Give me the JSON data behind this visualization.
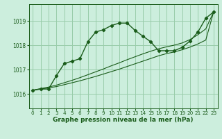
{
  "title": "Graphe pression niveau de la mer (hPa)",
  "bg_color": "#cceedd",
  "grid_color": "#99ccaa",
  "line_color": "#1a5c1a",
  "xlim": [
    -0.5,
    23.5
  ],
  "ylim": [
    1015.4,
    1019.7
  ],
  "yticks": [
    1016,
    1017,
    1018,
    1019
  ],
  "xticks": [
    0,
    1,
    2,
    3,
    4,
    5,
    6,
    7,
    8,
    9,
    10,
    11,
    12,
    13,
    14,
    15,
    16,
    17,
    18,
    19,
    20,
    21,
    22,
    23
  ],
  "curve1_x": [
    0,
    1,
    2,
    3,
    4,
    5,
    6,
    7,
    8,
    9,
    10,
    11,
    12,
    13,
    14,
    15,
    16,
    17,
    18,
    19,
    20,
    21,
    22,
    23
  ],
  "curve1_y": [
    1016.15,
    1016.2,
    1016.2,
    1016.75,
    1017.25,
    1017.35,
    1017.45,
    1018.15,
    1018.55,
    1018.65,
    1018.82,
    1018.92,
    1018.92,
    1018.62,
    1018.38,
    1018.15,
    1017.78,
    1017.78,
    1017.78,
    1017.92,
    1018.18,
    1018.55,
    1019.12,
    1019.38
  ],
  "curve2_x": [
    0,
    1,
    2,
    3,
    4,
    5,
    6,
    7,
    8,
    9,
    10,
    11,
    12,
    13,
    14,
    15,
    16,
    17,
    18,
    19,
    20,
    21,
    22,
    23
  ],
  "curve2_y": [
    1016.15,
    1016.2,
    1016.25,
    1016.3,
    1016.38,
    1016.46,
    1016.54,
    1016.63,
    1016.72,
    1016.82,
    1016.92,
    1017.02,
    1017.13,
    1017.24,
    1017.35,
    1017.46,
    1017.57,
    1017.66,
    1017.73,
    1017.82,
    1017.93,
    1018.06,
    1018.22,
    1019.38
  ],
  "curve3_x": [
    0,
    1,
    2,
    3,
    4,
    5,
    6,
    7,
    8,
    9,
    10,
    11,
    12,
    13,
    14,
    15,
    16,
    17,
    18,
    19,
    20,
    21,
    22,
    23
  ],
  "curve3_y": [
    1016.15,
    1016.22,
    1016.28,
    1016.36,
    1016.46,
    1016.56,
    1016.67,
    1016.79,
    1016.91,
    1017.03,
    1017.16,
    1017.28,
    1017.41,
    1017.53,
    1017.65,
    1017.76,
    1017.86,
    1017.94,
    1018.01,
    1018.1,
    1018.24,
    1018.44,
    1018.68,
    1019.38
  ],
  "ylabel_fontsize": 5.5,
  "xlabel_fontsize": 6.5,
  "tick_fontsize": 5.2
}
